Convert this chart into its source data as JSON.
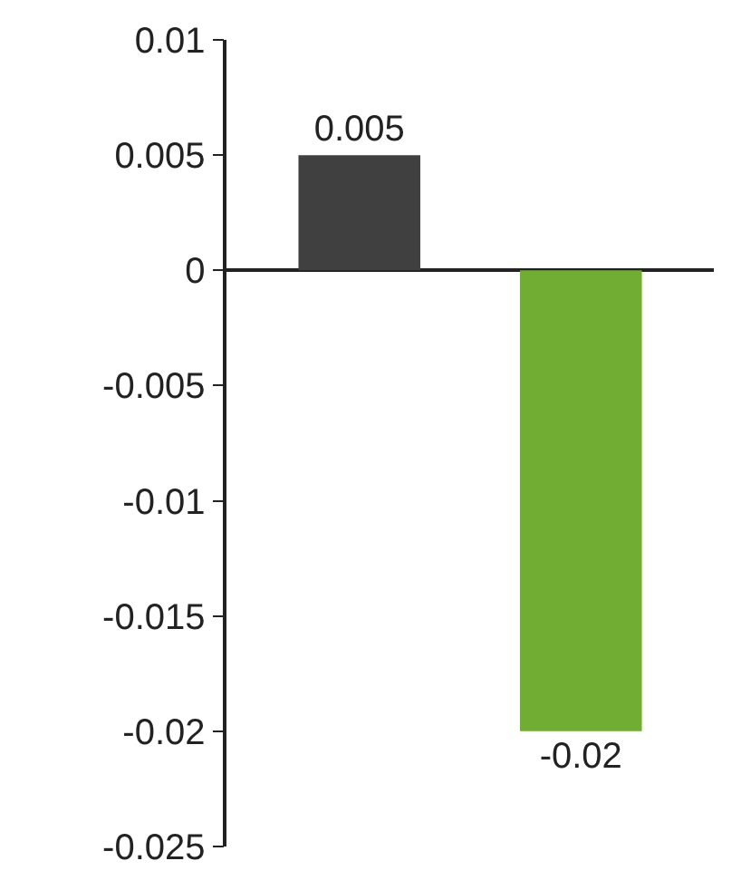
{
  "chart_data": {
    "type": "bar",
    "categories": [
      null,
      null
    ],
    "values": [
      0.005,
      -0.02
    ],
    "colors": [
      "#404040",
      "#70ad32"
    ],
    "ylim": [
      -0.025,
      0.01
    ],
    "yticks": [
      -0.025,
      -0.02,
      -0.015,
      -0.01,
      -0.005,
      0,
      0.005,
      0.01
    ],
    "data_labels": true,
    "legend": false,
    "tick_labels": "y"
  }
}
